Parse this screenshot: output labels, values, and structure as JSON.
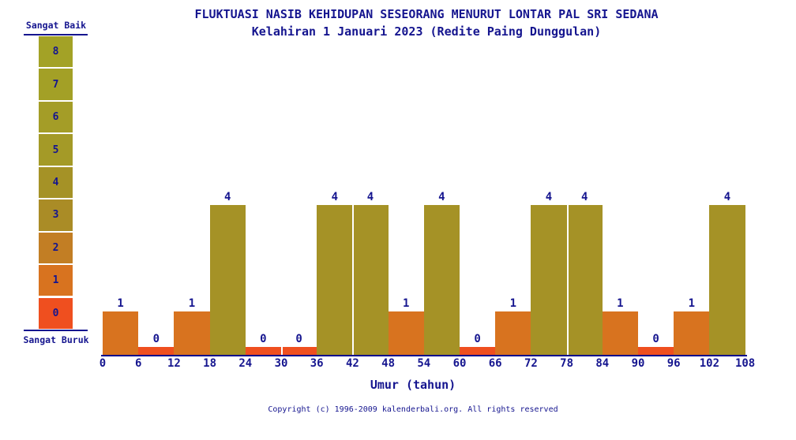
{
  "title": {
    "line1": "FLUKTUASI NASIB KEHIDUPAN SESEORANG MENURUT LONTAR PAL SRI SEDANA",
    "line2": "Kelahiran 1 Januari 2023 (Redite Paing Dunggulan)"
  },
  "legend": {
    "top_label": "Sangat Baik",
    "bottom_label": "Sangat Buruk",
    "levels": [
      {
        "value": 8,
        "color": "#a3a226"
      },
      {
        "value": 7,
        "color": "#a3a026"
      },
      {
        "value": 6,
        "color": "#a49d27"
      },
      {
        "value": 5,
        "color": "#a49a27"
      },
      {
        "value": 4,
        "color": "#a59226"
      },
      {
        "value": 3,
        "color": "#aa8c26"
      },
      {
        "value": 2,
        "color": "#c27e24"
      },
      {
        "value": 1,
        "color": "#d8731f"
      },
      {
        "value": 0,
        "color": "#ef4f1f"
      }
    ]
  },
  "chart_data": {
    "type": "bar",
    "title": "FLUKTUASI NASIB KEHIDUPAN SESEORANG MENURUT LONTAR PAL SRI SEDANA",
    "subtitle": "Kelahiran 1 Januari 2023 (Redite Paing Dunggulan)",
    "xlabel": "Umur (tahun)",
    "ylabel": "",
    "categories": [
      "0-6",
      "6-12",
      "12-18",
      "18-24",
      "24-30",
      "30-36",
      "36-42",
      "42-48",
      "48-54",
      "54-60",
      "60-66",
      "66-72",
      "72-78",
      "78-84",
      "84-90",
      "90-96",
      "96-102",
      "102-108"
    ],
    "values": [
      1,
      0,
      1,
      4,
      0,
      0,
      4,
      4,
      1,
      4,
      0,
      1,
      4,
      4,
      1,
      0,
      1,
      4
    ],
    "x_ticks": [
      "0",
      "6",
      "12",
      "18",
      "24",
      "30",
      "36",
      "42",
      "48",
      "54",
      "60",
      "66",
      "72",
      "78",
      "84",
      "90",
      "96",
      "102",
      "108"
    ],
    "ylim": [
      0,
      8
    ],
    "grid": false,
    "legend_position": "left",
    "bar_value_labels": true,
    "color_by_value": {
      "0": "#ef4f1f",
      "1": "#d8731f",
      "4": "#a59226"
    }
  },
  "footer": {
    "copyright": "Copyright (c) 1996-2009 kalenderbali.org. All rights reserved"
  },
  "colors": {
    "text": "#15158f",
    "axis": "#00008a",
    "background": "#ffffff",
    "bar_separator": "#ffffff"
  }
}
